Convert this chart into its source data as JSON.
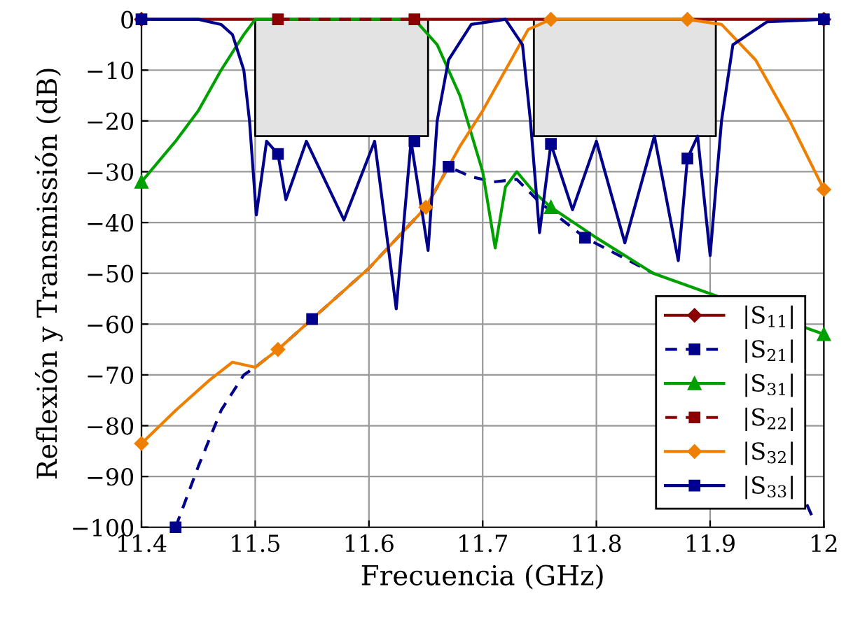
{
  "chart_data": {
    "type": "line",
    "xlabel": "Frecuencia (GHz)",
    "ylabel": "Reflexión y Transmissión (dB)",
    "xlim": [
      11.4,
      12
    ],
    "ylim": [
      -100,
      0
    ],
    "xticks": [
      11.4,
      11.5,
      11.6,
      11.7,
      11.8,
      11.9,
      12
    ],
    "yticks": [
      0,
      {
        "value": -10,
        "label": "−10"
      },
      {
        "value": -20,
        "label": "−20"
      },
      {
        "value": -30,
        "label": "−30"
      },
      {
        "value": -40,
        "label": "−40"
      },
      {
        "value": -50,
        "label": "−50"
      },
      {
        "value": -60,
        "label": "−60"
      },
      {
        "value": -70,
        "label": "−70"
      },
      {
        "value": -80,
        "label": "−80"
      },
      {
        "value": -90,
        "label": "−90"
      },
      {
        "value": -100,
        "label": "−100"
      }
    ],
    "grid": true,
    "legend": "bottom right",
    "series": [
      {
        "type": "area",
        "color": "#e3e3e3",
        "x": [
          11.5,
          11.652
        ],
        "values": [
          -23,
          -23
        ]
      },
      {
        "type": "area",
        "color": "#e3e3e3",
        "x": [
          11.745,
          11.905
        ],
        "values": [
          -23,
          -23
        ]
      },
      {
        "name": "|S$_{11}$|",
        "color": "#8b0000",
        "marker": "diamond",
        "line_style": "solid",
        "x": [
          11.4,
          12
        ],
        "values": [
          0,
          0
        ]
      },
      {
        "name": "|S$_{21}$|",
        "color": "#00008b",
        "line_style": "dashed",
        "x": [
          11.43,
          11.45,
          11.47,
          11.49,
          11.5,
          11.52,
          11.55,
          11.6,
          11.65,
          11.67,
          11.69,
          11.71,
          11.73,
          11.75,
          11.79,
          11.85,
          11.86,
          11.985,
          11.99
        ],
        "values": [
          -100,
          -88,
          -77,
          -70,
          -68.5,
          -65,
          -59,
          -49,
          -37,
          -29,
          -31,
          -32,
          -31.5,
          -36,
          -43,
          -50,
          null,
          -95.5,
          -98
        ]
      },
      {
        "name": "|S$_{31}$|",
        "color": "#00a000",
        "line_style": "solid",
        "x": [
          11.4,
          11.43,
          11.45,
          11.47,
          11.49,
          11.5,
          11.64,
          11.66,
          11.68,
          11.7,
          11.711,
          11.72,
          11.73,
          11.745,
          11.76,
          11.8,
          11.85,
          12
        ],
        "values": [
          -32,
          -24,
          -18,
          -10,
          -3,
          0,
          0,
          -5,
          -15,
          -30,
          -45,
          -33,
          -30,
          -34,
          -37,
          -43,
          -50,
          -62
        ]
      },
      {
        "name": "|S$_{22}$|",
        "color": "#8b0000",
        "marker": "square",
        "line_style": "dashed",
        "x": [
          11.52,
          11.64
        ],
        "values": [
          0,
          0
        ]
      },
      {
        "name": "|S$_{32}$|",
        "color": "#ee7f00",
        "line_style": "solid",
        "x": [
          11.4,
          11.43,
          11.46,
          11.48,
          11.5,
          11.52,
          11.55,
          11.6,
          11.65,
          11.68,
          11.7,
          11.72,
          11.74,
          11.76,
          11.88,
          11.91,
          11.94,
          11.97,
          12
        ],
        "values": [
          -83.5,
          -77,
          -71,
          -67.5,
          -68.5,
          -65,
          -59,
          -49,
          -37,
          -25,
          -18,
          -10,
          -2,
          0,
          0,
          -1,
          -8,
          -20,
          -33.5
        ]
      },
      {
        "name": "|S$_{33}$|",
        "color": "#00008b",
        "line_style": "solid",
        "x": [
          11.4,
          11.45,
          11.47,
          11.48,
          11.49,
          11.495,
          11.501,
          11.51,
          11.52,
          11.527,
          11.545,
          11.578,
          11.605,
          11.624,
          11.637,
          11.652,
          11.66,
          11.67,
          11.69,
          11.72,
          11.735,
          11.742,
          11.75,
          11.76,
          11.779,
          11.8,
          11.825,
          11.851,
          11.872,
          11.88,
          11.889,
          11.9,
          11.91,
          11.92,
          11.95,
          12
        ],
        "values": [
          0,
          0,
          -1,
          -3,
          -10,
          -20,
          -38.5,
          -24,
          -26.5,
          -35.5,
          -24,
          -39.5,
          -24,
          -57,
          -24,
          -45.5,
          -20,
          -8,
          -1,
          0,
          -5,
          -20,
          -42,
          -24.5,
          -37.5,
          -24,
          -44,
          -23,
          -47.5,
          -27.4,
          -23,
          -46.5,
          -20,
          -5,
          -0.5,
          0
        ]
      },
      {
        "type": "scatter",
        "color": "#00008b",
        "marker": "square",
        "x": [
          11.43,
          11.55,
          11.67,
          11.79
        ],
        "values": [
          -100,
          -59,
          -29,
          -43
        ]
      },
      {
        "type": "scatter",
        "color": "#00a000",
        "marker": "triangle",
        "x": [
          11.4,
          11.76,
          12
        ],
        "values": [
          -32,
          -37,
          -62
        ]
      },
      {
        "type": "scatter",
        "color": "#ee7f00",
        "marker": "diamond",
        "x": [
          11.4,
          11.52,
          11.65,
          11.76,
          11.88,
          12
        ],
        "values": [
          -83.5,
          -65,
          -37,
          0,
          0,
          -33.5
        ]
      },
      {
        "type": "scatter",
        "color": "#00008b",
        "marker": "square",
        "x": [
          11.4,
          11.52,
          11.64,
          11.76,
          11.88,
          12
        ],
        "values": [
          0,
          -26.5,
          -24,
          -24.5,
          -27.4,
          0
        ]
      }
    ]
  }
}
